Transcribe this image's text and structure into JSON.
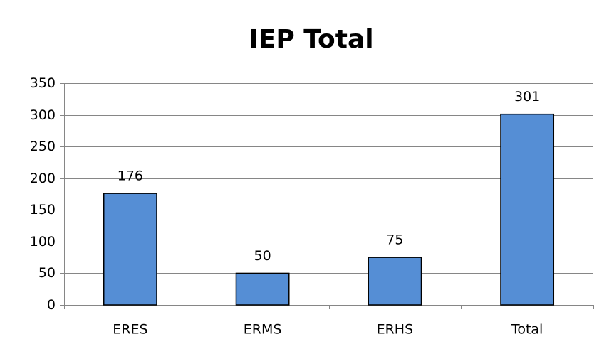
{
  "chart_data": {
    "type": "bar",
    "title": "IEP Total",
    "categories": [
      "ERES",
      "ERMS",
      "ERHS",
      "Total"
    ],
    "values": [
      176,
      50,
      75,
      301
    ],
    "color": "#558ed5",
    "ylim": [
      0,
      350
    ],
    "yticks": [
      0,
      50,
      100,
      150,
      200,
      250,
      300,
      350
    ],
    "grid": true
  }
}
